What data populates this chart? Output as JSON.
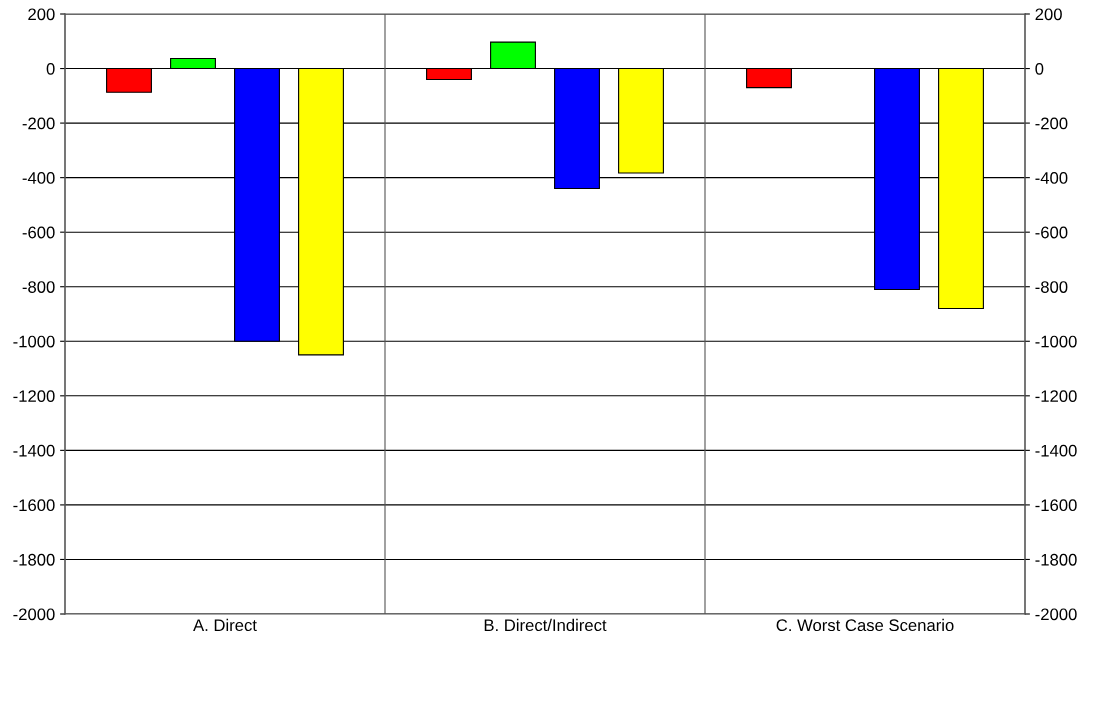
{
  "chart_data": {
    "type": "bar",
    "categories": [
      "A. Direct",
      "B. Direct/Indirect",
      "C. Worst Case Scenario"
    ],
    "series": [
      {
        "color": "#ff0000",
        "values": [
          -87,
          -40,
          -70
        ]
      },
      {
        "color": "#00ff00",
        "values": [
          37,
          97,
          null
        ]
      },
      {
        "color": "#0000ff",
        "values": [
          -1000,
          -440,
          -810
        ]
      },
      {
        "color": "#ffff00",
        "values": [
          -1050,
          -383,
          -880
        ]
      }
    ],
    "ylim": [
      -2000,
      200
    ],
    "yticks": [
      -2000,
      -1800,
      -1600,
      -1400,
      -1200,
      -1000,
      -800,
      -600,
      -400,
      -200,
      0,
      200
    ],
    "y2lim": [
      -2000,
      200
    ],
    "y2ticks": [
      -2000,
      -1800,
      -1600,
      -1400,
      -1200,
      -1000,
      -800,
      -600,
      -400,
      -200,
      0,
      200
    ],
    "grid": "y"
  }
}
